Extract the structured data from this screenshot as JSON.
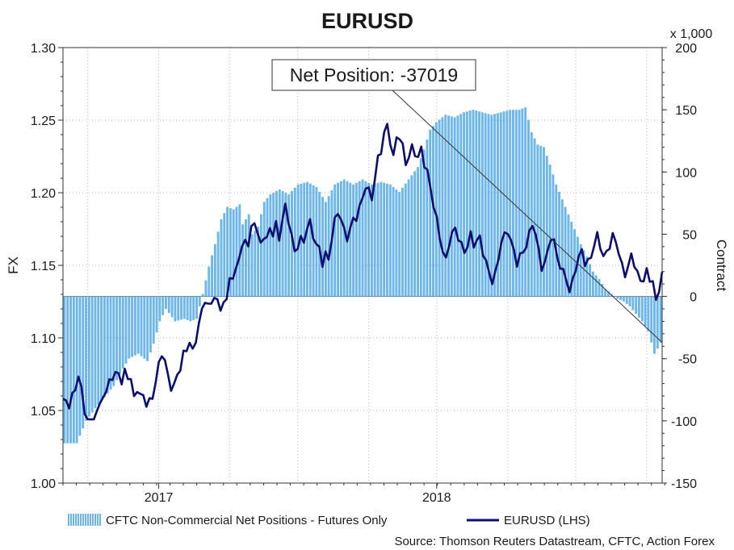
{
  "chart_data": {
    "type": "bar+line",
    "title": "EURUSD",
    "left_axis": {
      "label": "FX",
      "range": [
        1.0,
        1.3
      ],
      "ticks": [
        "1.00",
        "1.05",
        "1.10",
        "1.15",
        "1.20",
        "1.25",
        "1.30"
      ]
    },
    "right_axis": {
      "label": "Contract",
      "unit_label": "x 1,000",
      "range": [
        -150,
        200
      ],
      "ticks": [
        "-150",
        "-100",
        "-50",
        "0",
        "50",
        "100",
        "150",
        "200"
      ]
    },
    "x_axis": {
      "ticks": [
        "2017",
        "2018"
      ],
      "tick_weeks": [
        31,
        121
      ],
      "total_weeks": 195
    },
    "grid": true,
    "legend_position": "bottom",
    "annotation": "Net Position: -37019",
    "source": "Source: Thomson Reuters Datastream, CFTC, Action Forex",
    "colors": {
      "bars": "#6db6ea",
      "line": "#0d0d6e",
      "zero_line": "#6b8fb8",
      "trend": "#333333"
    },
    "series": [
      {
        "name": "CFTC Non-Commercial Net Positions - Futures Only",
        "axis": "right",
        "kind": "bar",
        "keypoints": [
          [
            0,
            -118
          ],
          [
            4,
            -118
          ],
          [
            7,
            -100
          ],
          [
            10,
            -90
          ],
          [
            14,
            -78
          ],
          [
            16,
            -72
          ],
          [
            19,
            -58
          ],
          [
            21,
            -50
          ],
          [
            24,
            -46
          ],
          [
            27,
            -52
          ],
          [
            29,
            -38
          ],
          [
            31,
            -20
          ],
          [
            33,
            -10
          ],
          [
            36,
            -20
          ],
          [
            39,
            -18
          ],
          [
            41,
            -20
          ],
          [
            43,
            -18
          ],
          [
            45,
            2
          ],
          [
            47,
            24
          ],
          [
            49,
            42
          ],
          [
            51,
            62
          ],
          [
            53,
            72
          ],
          [
            55,
            70
          ],
          [
            57,
            74
          ],
          [
            58,
            58
          ],
          [
            60,
            66
          ],
          [
            61,
            50
          ],
          [
            63,
            56
          ],
          [
            65,
            76
          ],
          [
            67,
            82
          ],
          [
            70,
            86
          ],
          [
            73,
            82
          ],
          [
            76,
            90
          ],
          [
            79,
            92
          ],
          [
            82,
            88
          ],
          [
            85,
            76
          ],
          [
            88,
            90
          ],
          [
            91,
            94
          ],
          [
            94,
            90
          ],
          [
            97,
            94
          ],
          [
            100,
            90
          ],
          [
            103,
            92
          ],
          [
            106,
            90
          ],
          [
            109,
            84
          ],
          [
            112,
            94
          ],
          [
            115,
            104
          ],
          [
            117,
            118
          ],
          [
            119,
            134
          ],
          [
            121,
            140
          ],
          [
            124,
            146
          ],
          [
            127,
            144
          ],
          [
            130,
            148
          ],
          [
            133,
            150
          ],
          [
            136,
            148
          ],
          [
            139,
            146
          ],
          [
            142,
            148
          ],
          [
            145,
            150
          ],
          [
            148,
            150
          ],
          [
            150,
            152
          ],
          [
            152,
            132
          ],
          [
            154,
            122
          ],
          [
            156,
            120
          ],
          [
            158,
            106
          ],
          [
            160,
            90
          ],
          [
            162,
            78
          ],
          [
            164,
            66
          ],
          [
            166,
            54
          ],
          [
            168,
            42
          ],
          [
            170,
            32
          ],
          [
            172,
            20
          ],
          [
            174,
            14
          ],
          [
            176,
            6
          ],
          [
            178,
            2
          ],
          [
            180,
            -2
          ],
          [
            182,
            -4
          ],
          [
            184,
            -8
          ],
          [
            186,
            -14
          ],
          [
            188,
            -20
          ],
          [
            190,
            -28
          ],
          [
            192,
            -46
          ],
          [
            193,
            -42
          ],
          [
            194,
            -37
          ]
        ]
      },
      {
        "name": "EURUSD (LHS)",
        "axis": "left",
        "kind": "line",
        "keypoints": [
          [
            0,
            1.058
          ],
          [
            2,
            1.055
          ],
          [
            3,
            1.06
          ],
          [
            4,
            1.062
          ],
          [
            5,
            1.075
          ],
          [
            6,
            1.065
          ],
          [
            7,
            1.05
          ],
          [
            8,
            1.045
          ],
          [
            9,
            1.04
          ],
          [
            10,
            1.045
          ],
          [
            11,
            1.05
          ],
          [
            12,
            1.055
          ],
          [
            13,
            1.062
          ],
          [
            14,
            1.06
          ],
          [
            15,
            1.07
          ],
          [
            16,
            1.073
          ],
          [
            18,
            1.078
          ],
          [
            19,
            1.068
          ],
          [
            20,
            1.075
          ],
          [
            22,
            1.072
          ],
          [
            23,
            1.06
          ],
          [
            24,
            1.065
          ],
          [
            25,
            1.058
          ],
          [
            26,
            1.06
          ],
          [
            27,
            1.055
          ],
          [
            29,
            1.06
          ],
          [
            30,
            1.068
          ],
          [
            31,
            1.08
          ],
          [
            32,
            1.09
          ],
          [
            33,
            1.085
          ],
          [
            34,
            1.075
          ],
          [
            35,
            1.065
          ],
          [
            36,
            1.065
          ],
          [
            37,
            1.075
          ],
          [
            38,
            1.08
          ],
          [
            39,
            1.09
          ],
          [
            41,
            1.095
          ],
          [
            42,
            1.09
          ],
          [
            43,
            1.1
          ],
          [
            44,
            1.11
          ],
          [
            45,
            1.12
          ],
          [
            46,
            1.125
          ],
          [
            47,
            1.12
          ],
          [
            48,
            1.125
          ],
          [
            49,
            1.13
          ],
          [
            50,
            1.125
          ],
          [
            51,
            1.12
          ],
          [
            53,
            1.125
          ],
          [
            54,
            1.145
          ],
          [
            55,
            1.14
          ],
          [
            57,
            1.155
          ],
          [
            58,
            1.16
          ],
          [
            59,
            1.17
          ],
          [
            60,
            1.165
          ],
          [
            61,
            1.175
          ],
          [
            62,
            1.18
          ],
          [
            63,
            1.17
          ],
          [
            64,
            1.165
          ],
          [
            65,
            1.172
          ],
          [
            66,
            1.168
          ],
          [
            67,
            1.175
          ],
          [
            68,
            1.17
          ],
          [
            69,
            1.178
          ],
          [
            70,
            1.17
          ],
          [
            71,
            1.182
          ],
          [
            72,
            1.19
          ],
          [
            73,
            1.18
          ],
          [
            74,
            1.17
          ],
          [
            75,
            1.16
          ],
          [
            76,
            1.165
          ],
          [
            77,
            1.168
          ],
          [
            78,
            1.165
          ],
          [
            79,
            1.175
          ],
          [
            80,
            1.18
          ],
          [
            81,
            1.172
          ],
          [
            82,
            1.165
          ],
          [
            83,
            1.16
          ],
          [
            84,
            1.15
          ],
          [
            85,
            1.158
          ],
          [
            86,
            1.155
          ],
          [
            87,
            1.17
          ],
          [
            88,
            1.18
          ],
          [
            89,
            1.185
          ],
          [
            90,
            1.182
          ],
          [
            91,
            1.175
          ],
          [
            92,
            1.17
          ],
          [
            93,
            1.175
          ],
          [
            94,
            1.18
          ],
          [
            95,
            1.182
          ],
          [
            96,
            1.19
          ],
          [
            97,
            1.198
          ],
          [
            98,
            1.205
          ],
          [
            99,
            1.2
          ],
          [
            100,
            1.195
          ],
          [
            101,
            1.21
          ],
          [
            102,
            1.225
          ],
          [
            103,
            1.23
          ],
          [
            104,
            1.24
          ],
          [
            105,
            1.245
          ],
          [
            106,
            1.235
          ],
          [
            107,
            1.225
          ],
          [
            108,
            1.24
          ],
          [
            109,
            1.238
          ],
          [
            110,
            1.23
          ],
          [
            111,
            1.22
          ],
          [
            112,
            1.225
          ],
          [
            113,
            1.233
          ],
          [
            114,
            1.228
          ],
          [
            115,
            1.222
          ],
          [
            116,
            1.23
          ],
          [
            117,
            1.22
          ],
          [
            118,
            1.215
          ],
          [
            119,
            1.205
          ],
          [
            120,
            1.19
          ],
          [
            121,
            1.18
          ],
          [
            122,
            1.17
          ],
          [
            123,
            1.16
          ],
          [
            124,
            1.155
          ],
          [
            125,
            1.165
          ],
          [
            126,
            1.17
          ],
          [
            127,
            1.175
          ],
          [
            128,
            1.17
          ],
          [
            129,
            1.165
          ],
          [
            130,
            1.16
          ],
          [
            131,
            1.162
          ],
          [
            132,
            1.17
          ],
          [
            133,
            1.165
          ],
          [
            134,
            1.168
          ],
          [
            135,
            1.17
          ],
          [
            136,
            1.158
          ],
          [
            137,
            1.15
          ],
          [
            138,
            1.145
          ],
          [
            139,
            1.14
          ],
          [
            140,
            1.145
          ],
          [
            141,
            1.155
          ],
          [
            142,
            1.165
          ],
          [
            143,
            1.17
          ],
          [
            144,
            1.175
          ],
          [
            145,
            1.168
          ],
          [
            146,
            1.16
          ],
          [
            147,
            1.15
          ],
          [
            148,
            1.155
          ],
          [
            149,
            1.16
          ],
          [
            150,
            1.165
          ],
          [
            151,
            1.172
          ],
          [
            152,
            1.178
          ],
          [
            153,
            1.17
          ],
          [
            154,
            1.16
          ],
          [
            155,
            1.15
          ],
          [
            156,
            1.152
          ],
          [
            157,
            1.16
          ],
          [
            158,
            1.168
          ],
          [
            159,
            1.165
          ],
          [
            160,
            1.158
          ],
          [
            161,
            1.15
          ],
          [
            162,
            1.145
          ],
          [
            163,
            1.14
          ],
          [
            164,
            1.13
          ],
          [
            165,
            1.14
          ],
          [
            166,
            1.15
          ],
          [
            167,
            1.155
          ],
          [
            168,
            1.16
          ],
          [
            169,
            1.15
          ],
          [
            170,
            1.152
          ],
          [
            171,
            1.158
          ],
          [
            172,
            1.165
          ],
          [
            173,
            1.17
          ],
          [
            174,
            1.162
          ],
          [
            175,
            1.155
          ],
          [
            176,
            1.16
          ],
          [
            177,
            1.165
          ],
          [
            178,
            1.17
          ],
          [
            179,
            1.165
          ],
          [
            180,
            1.158
          ],
          [
            181,
            1.15
          ],
          [
            182,
            1.145
          ],
          [
            183,
            1.15
          ],
          [
            184,
            1.155
          ],
          [
            185,
            1.15
          ],
          [
            186,
            1.145
          ],
          [
            187,
            1.14
          ],
          [
            188,
            1.142
          ],
          [
            189,
            1.145
          ],
          [
            190,
            1.138
          ],
          [
            191,
            1.14
          ],
          [
            192,
            1.125
          ],
          [
            193,
            1.135
          ],
          [
            194,
            1.145
          ]
        ]
      }
    ]
  }
}
